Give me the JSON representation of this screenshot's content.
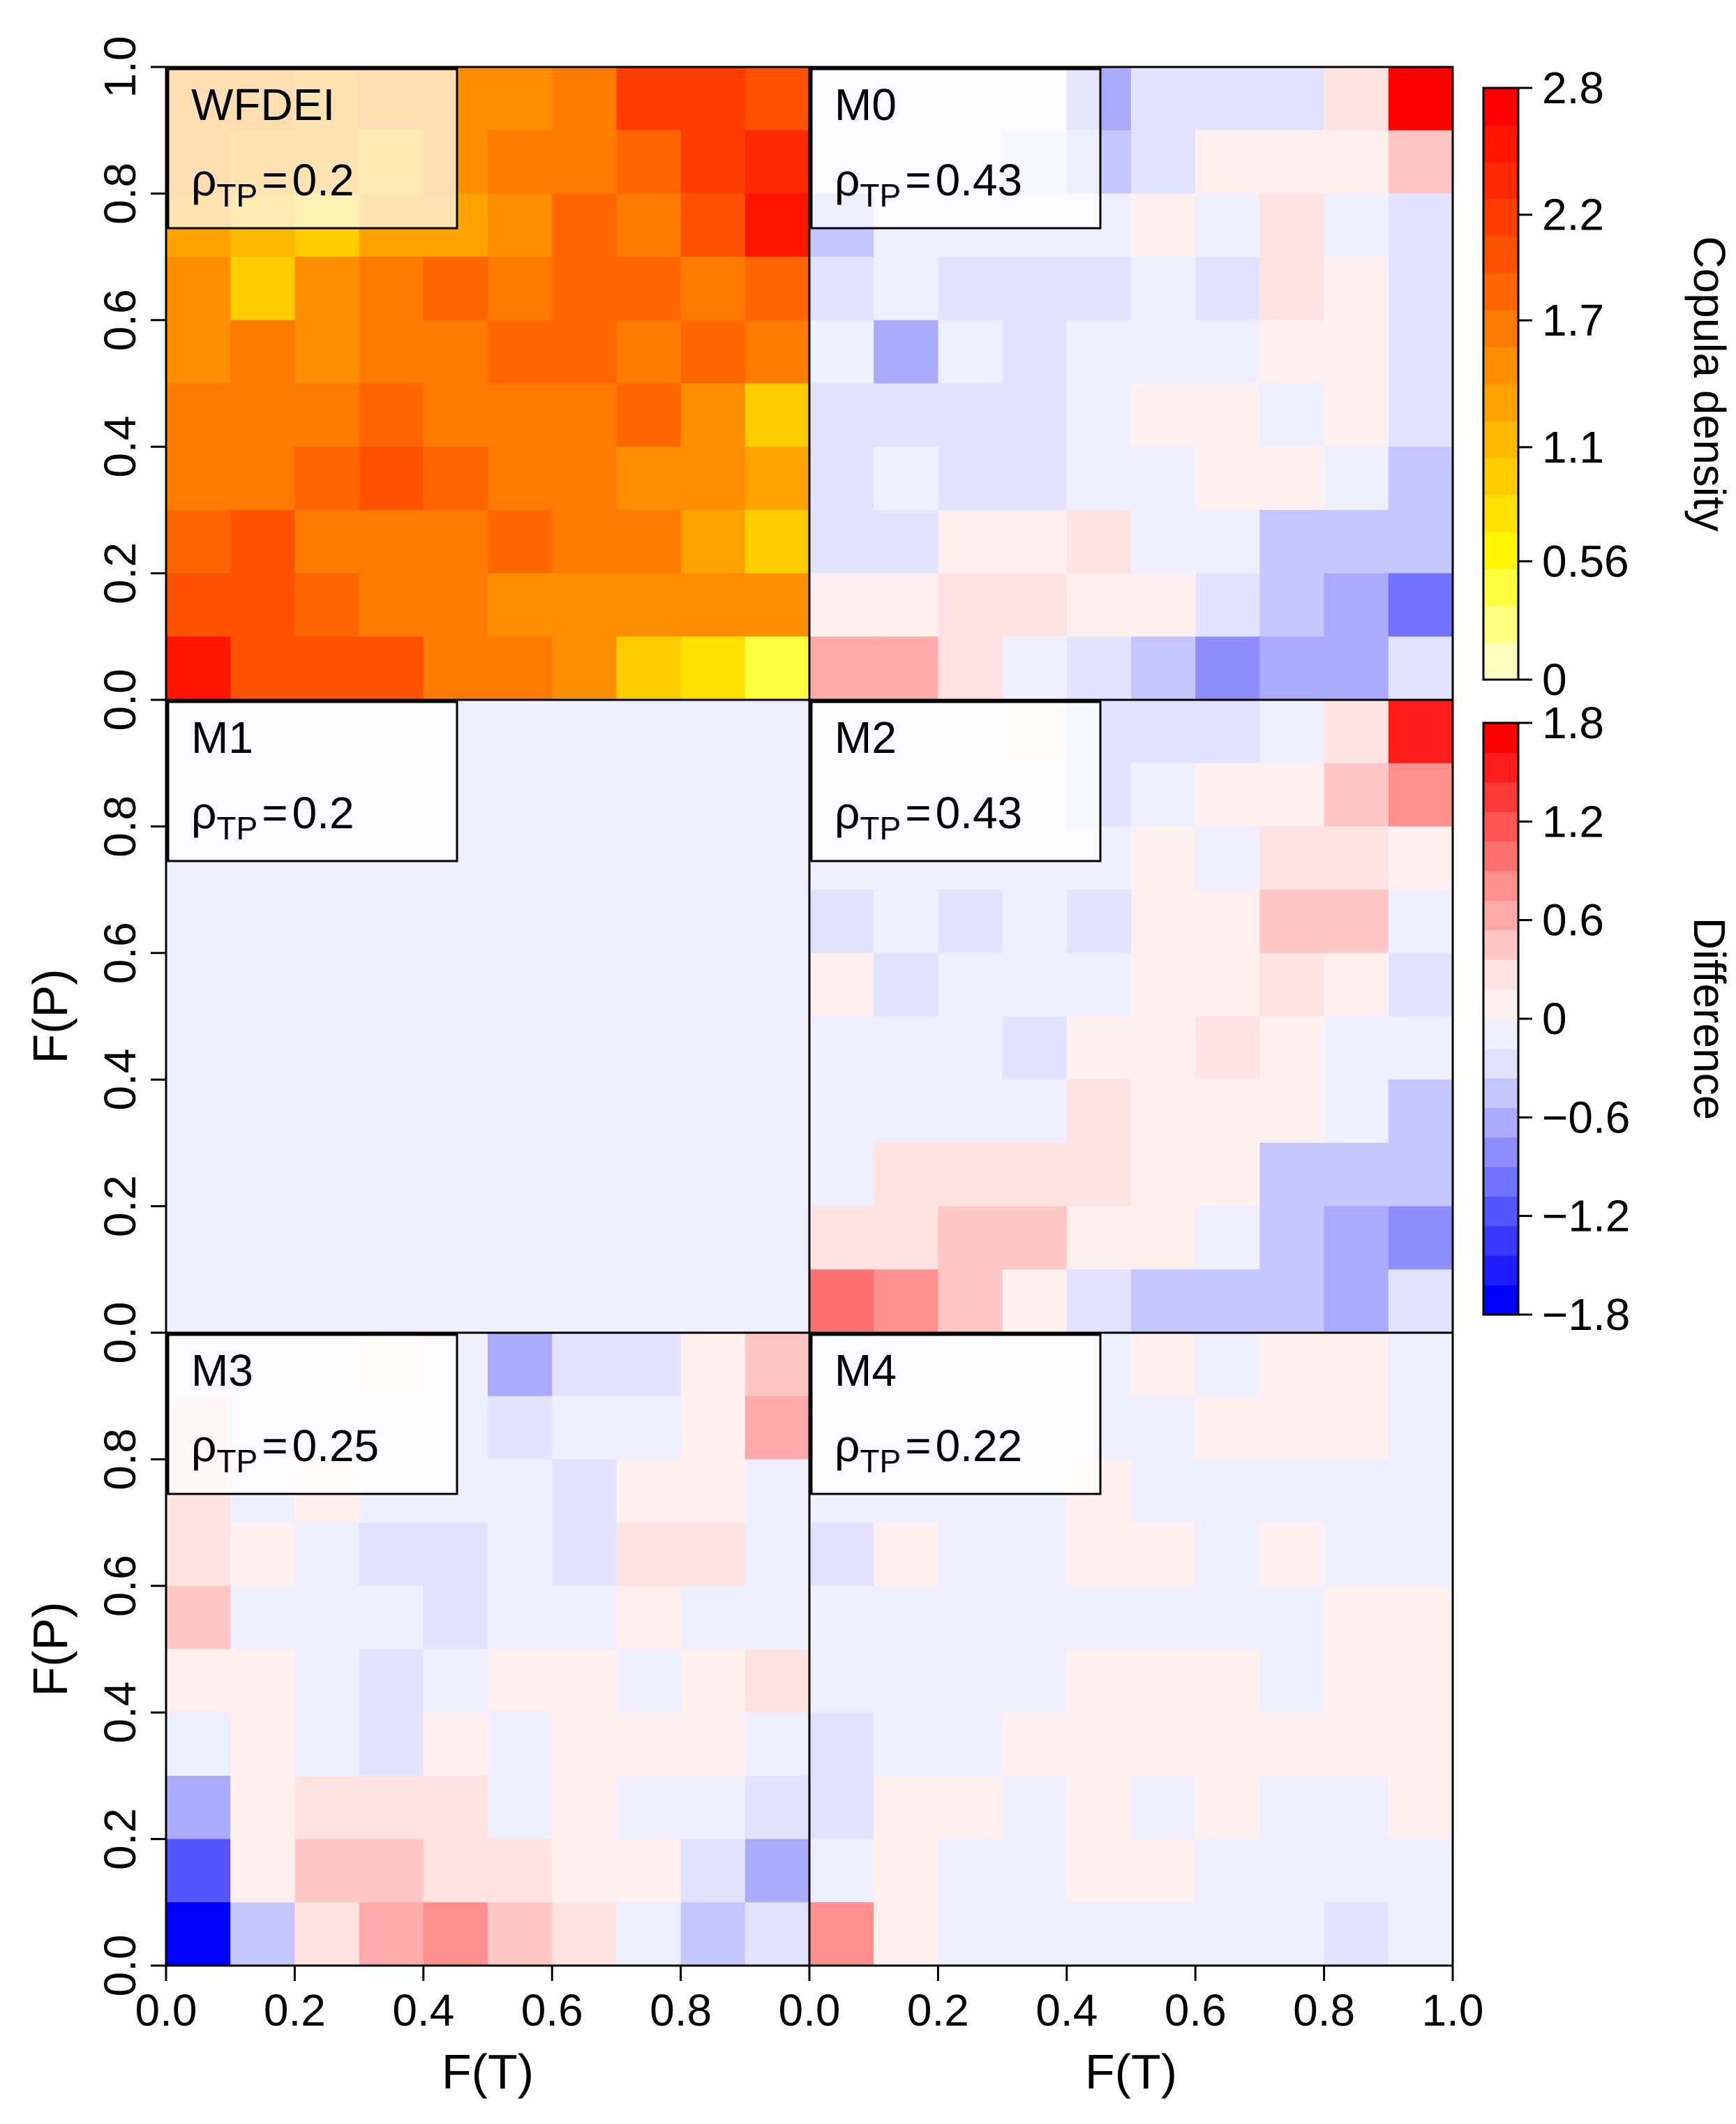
{
  "chart_data": {
    "type": "heatmap",
    "layout": "3 rows x 2 columns of panels",
    "x_label": "F(T)",
    "y_label": "F(P)",
    "x_ticks": [
      "0.0",
      "0.2",
      "0.4",
      "0.6",
      "0.8",
      "1.0"
    ],
    "x_ticks_left_panel": [
      "0.0",
      "0.2",
      "0.4",
      "0.6",
      "0.8"
    ],
    "y_ticks": [
      "0.0",
      "0.2",
      "0.4",
      "0.6",
      "0.8",
      "1.0"
    ],
    "y_ticks_lower_panels": [
      "0.0",
      "0.2",
      "0.4",
      "0.6",
      "0.8"
    ],
    "grid_bins": 10,
    "rho_symbol": "ρ",
    "rho_subscript": "TP",
    "panels": [
      {
        "id": "WFDEI",
        "label": "WFDEI",
        "rho": "0.2",
        "scale": "density",
        "rows_top_to_bottom": [
          [
            1.5,
            1.4,
            1.3,
            1.5,
            1.5,
            1.4,
            1.7,
            2.1,
            2.1,
            2.0
          ],
          [
            1.4,
            1.3,
            1.3,
            1.2,
            1.4,
            1.6,
            1.7,
            1.9,
            2.2,
            2.4
          ],
          [
            1.3,
            1.1,
            1.0,
            1.3,
            1.3,
            1.4,
            1.9,
            1.7,
            2.0,
            2.6
          ],
          [
            1.4,
            1.0,
            1.4,
            1.6,
            1.9,
            1.6,
            1.9,
            1.8,
            1.7,
            1.9
          ],
          [
            1.4,
            1.6,
            1.4,
            1.6,
            1.6,
            1.8,
            1.8,
            1.7,
            1.9,
            1.6
          ],
          [
            1.6,
            1.6,
            1.6,
            1.8,
            1.6,
            1.6,
            1.6,
            1.8,
            1.4,
            1.0
          ],
          [
            1.6,
            1.6,
            1.8,
            2.0,
            1.8,
            1.6,
            1.6,
            1.4,
            1.4,
            1.3
          ],
          [
            1.8,
            2.0,
            1.6,
            1.6,
            1.6,
            1.8,
            1.6,
            1.6,
            1.3,
            1.0
          ],
          [
            2.0,
            2.0,
            1.8,
            1.6,
            1.6,
            1.4,
            1.4,
            1.4,
            1.4,
            1.4
          ],
          [
            2.6,
            2.0,
            2.0,
            2.0,
            1.6,
            1.6,
            1.4,
            0.9,
            0.8,
            0.5
          ]
        ]
      },
      {
        "id": "M0",
        "label": "M0",
        "rho": "0.43",
        "scale": "difference",
        "rows_top_to_bottom": [
          [
            -0.1,
            -0.1,
            -0.1,
            -0.1,
            -0.6,
            -0.2,
            -0.2,
            -0.2,
            0.3,
            1.7
          ],
          [
            -0.1,
            -0.1,
            -0.1,
            -0.2,
            -0.4,
            -0.2,
            0.05,
            0.05,
            0.05,
            0.5
          ],
          [
            -0.5,
            -0.1,
            -0.1,
            -0.1,
            -0.1,
            0.05,
            -0.1,
            0.3,
            -0.1,
            -0.2
          ],
          [
            -0.2,
            -0.1,
            -0.2,
            -0.2,
            -0.2,
            -0.1,
            -0.2,
            0.3,
            0.05,
            -0.2
          ],
          [
            -0.1,
            -0.6,
            -0.1,
            -0.2,
            -0.1,
            -0.1,
            -0.1,
            0.05,
            0.05,
            -0.2
          ],
          [
            -0.2,
            -0.2,
            -0.2,
            -0.2,
            -0.1,
            0.05,
            0.05,
            -0.1,
            0.05,
            -0.2
          ],
          [
            -0.2,
            -0.1,
            -0.2,
            -0.2,
            -0.1,
            -0.1,
            0.05,
            0.05,
            -0.1,
            -0.5
          ],
          [
            -0.2,
            -0.2,
            0.05,
            0.05,
            0.2,
            -0.1,
            -0.1,
            -0.5,
            -0.5,
            -0.5
          ],
          [
            0.05,
            0.05,
            0.2,
            0.2,
            0.05,
            0.05,
            -0.2,
            -0.5,
            -0.7,
            -1.0
          ],
          [
            0.6,
            0.6,
            0.2,
            -0.1,
            -0.2,
            -0.5,
            -0.8,
            -0.7,
            -0.7,
            -0.2
          ]
        ]
      },
      {
        "id": "M1",
        "label": "M1",
        "rho": "0.2",
        "scale": "difference",
        "rows_top_to_bottom": [
          [
            -0.05,
            -0.05,
            -0.05,
            -0.05,
            -0.05,
            -0.05,
            -0.05,
            -0.05,
            -0.05,
            -0.05
          ],
          [
            -0.05,
            -0.05,
            -0.05,
            -0.05,
            -0.05,
            -0.05,
            -0.05,
            -0.05,
            -0.05,
            -0.05
          ],
          [
            -0.05,
            -0.05,
            -0.05,
            -0.05,
            -0.05,
            -0.05,
            -0.05,
            -0.05,
            -0.05,
            -0.05
          ],
          [
            -0.05,
            -0.05,
            -0.05,
            -0.05,
            -0.05,
            -0.05,
            -0.05,
            -0.05,
            -0.05,
            -0.05
          ],
          [
            -0.05,
            -0.05,
            -0.05,
            -0.05,
            -0.05,
            -0.05,
            -0.05,
            -0.05,
            -0.05,
            -0.05
          ],
          [
            -0.05,
            -0.05,
            -0.05,
            -0.05,
            -0.05,
            -0.05,
            -0.05,
            -0.05,
            -0.05,
            -0.05
          ],
          [
            -0.05,
            -0.05,
            -0.05,
            -0.05,
            -0.05,
            -0.05,
            -0.05,
            -0.05,
            -0.05,
            -0.05
          ],
          [
            -0.05,
            -0.05,
            -0.05,
            -0.05,
            -0.05,
            -0.05,
            -0.05,
            -0.05,
            -0.05,
            -0.05
          ],
          [
            -0.05,
            -0.05,
            -0.05,
            -0.05,
            -0.05,
            -0.05,
            -0.05,
            -0.05,
            -0.05,
            -0.05
          ],
          [
            -0.05,
            -0.05,
            -0.05,
            -0.05,
            -0.05,
            -0.05,
            -0.05,
            -0.05,
            -0.05,
            -0.05
          ]
        ]
      },
      {
        "id": "M2",
        "label": "M2",
        "rho": "0.43",
        "scale": "difference",
        "rows_top_to_bottom": [
          [
            -0.1,
            -0.1,
            -0.1,
            0.0,
            -0.2,
            -0.2,
            -0.2,
            -0.1,
            0.3,
            1.6
          ],
          [
            -0.1,
            -0.1,
            -0.1,
            -0.1,
            -0.2,
            -0.1,
            0.05,
            0.05,
            0.5,
            0.8
          ],
          [
            -0.1,
            -0.1,
            -0.1,
            -0.1,
            -0.1,
            0.05,
            -0.1,
            0.3,
            0.3,
            0.05
          ],
          [
            -0.2,
            -0.1,
            -0.2,
            -0.1,
            -0.2,
            0.05,
            0.05,
            0.4,
            0.4,
            -0.1
          ],
          [
            0.05,
            -0.2,
            -0.1,
            -0.1,
            -0.1,
            0.05,
            0.05,
            0.3,
            0.05,
            -0.2
          ],
          [
            -0.1,
            -0.1,
            -0.1,
            -0.2,
            0.05,
            0.05,
            0.2,
            0.05,
            -0.1,
            -0.1
          ],
          [
            -0.1,
            -0.1,
            -0.1,
            -0.1,
            0.2,
            0.05,
            0.05,
            0.05,
            -0.1,
            -0.5
          ],
          [
            -0.1,
            0.2,
            0.2,
            0.2,
            0.2,
            0.05,
            0.05,
            -0.5,
            -0.5,
            -0.5
          ],
          [
            0.2,
            0.2,
            0.4,
            0.4,
            0.05,
            0.05,
            -0.1,
            -0.5,
            -0.7,
            -0.9
          ],
          [
            1.0,
            0.8,
            0.4,
            0.05,
            -0.2,
            -0.4,
            -0.4,
            -0.4,
            -0.7,
            -0.2
          ]
        ]
      },
      {
        "id": "M3",
        "label": "M3",
        "rho": "0.25",
        "scale": "difference",
        "rows_top_to_bottom": [
          [
            -0.1,
            -0.1,
            -0.1,
            0.0,
            -0.1,
            -0.6,
            -0.2,
            -0.2,
            0.05,
            0.4
          ],
          [
            0.2,
            -0.1,
            -0.1,
            -0.1,
            -0.1,
            -0.3,
            -0.1,
            -0.1,
            0.05,
            0.7
          ],
          [
            0.2,
            -0.1,
            0.05,
            -0.1,
            -0.1,
            -0.1,
            -0.2,
            0.05,
            0.05,
            -0.1
          ],
          [
            0.2,
            0.05,
            -0.1,
            -0.2,
            -0.2,
            -0.1,
            -0.2,
            0.2,
            0.2,
            -0.1
          ],
          [
            0.4,
            -0.1,
            -0.1,
            -0.1,
            -0.2,
            -0.1,
            -0.1,
            0.05,
            -0.1,
            -0.1
          ],
          [
            0.05,
            0.05,
            -0.1,
            -0.2,
            -0.1,
            0.05,
            0.05,
            -0.1,
            0.05,
            0.2
          ],
          [
            -0.1,
            0.05,
            -0.1,
            -0.2,
            0.05,
            -0.1,
            0.05,
            0.05,
            0.05,
            -0.1
          ],
          [
            -0.7,
            0.05,
            0.2,
            0.2,
            0.2,
            -0.1,
            0.05,
            -0.1,
            -0.1,
            -0.2
          ],
          [
            -1.1,
            0.05,
            0.4,
            0.4,
            0.2,
            0.2,
            0.05,
            0.05,
            -0.2,
            -0.7
          ],
          [
            -1.8,
            -0.5,
            0.2,
            0.6,
            0.8,
            0.4,
            0.2,
            -0.1,
            -0.5,
            -0.2
          ]
        ]
      },
      {
        "id": "M4",
        "label": "M4",
        "rho": "0.22",
        "scale": "difference",
        "rows_top_to_bottom": [
          [
            -0.1,
            -0.1,
            -0.1,
            -0.1,
            -0.1,
            0.05,
            -0.1,
            0.05,
            0.05,
            -0.1
          ],
          [
            -0.1,
            -0.1,
            -0.1,
            -0.1,
            -0.1,
            -0.1,
            0.05,
            0.05,
            0.05,
            -0.1
          ],
          [
            -0.1,
            -0.1,
            -0.1,
            -0.1,
            0.05,
            -0.1,
            -0.1,
            -0.1,
            -0.1,
            -0.1
          ],
          [
            -0.2,
            0.05,
            -0.1,
            -0.1,
            0.05,
            0.05,
            -0.1,
            0.05,
            -0.1,
            -0.1
          ],
          [
            -0.1,
            -0.1,
            -0.1,
            -0.1,
            -0.1,
            -0.1,
            -0.1,
            -0.1,
            0.05,
            0.05
          ],
          [
            -0.1,
            -0.1,
            -0.1,
            -0.1,
            0.05,
            0.05,
            0.05,
            -0.1,
            0.05,
            0.05
          ],
          [
            -0.2,
            -0.1,
            -0.1,
            0.05,
            0.05,
            0.05,
            0.05,
            0.05,
            0.05,
            0.05
          ],
          [
            -0.2,
            0.05,
            0.05,
            -0.1,
            0.05,
            -0.1,
            0.05,
            -0.1,
            -0.1,
            0.05
          ],
          [
            -0.1,
            0.05,
            -0.1,
            -0.1,
            0.05,
            0.05,
            -0.1,
            -0.1,
            -0.1,
            -0.1
          ],
          [
            0.8,
            0.05,
            -0.1,
            -0.1,
            -0.1,
            -0.1,
            -0.1,
            -0.1,
            -0.2,
            -0.1
          ]
        ]
      }
    ],
    "colorbars": [
      {
        "id": "density",
        "title": "Copula density",
        "range": [
          0,
          2.8
        ],
        "tick_values": [
          2.8,
          2.2,
          1.7,
          1.1,
          0.56,
          0
        ],
        "tick_labels": [
          "2.8",
          "2.2",
          "1.7",
          "1.1",
          "0.56",
          "0"
        ],
        "colors_low_to_high": [
          "#FFFFBF",
          "#FFFF80",
          "#FFFF40",
          "#FFF500",
          "#FFE000",
          "#FFCC00",
          "#FFB800",
          "#FFA300",
          "#FF8F00",
          "#FF7A00",
          "#FF6600",
          "#FF5200",
          "#FF3D00",
          "#FF2900",
          "#FF1400",
          "#FF0000"
        ]
      },
      {
        "id": "difference",
        "title": "Difference",
        "range": [
          -1.8,
          1.8
        ],
        "tick_values": [
          1.8,
          1.2,
          0.6,
          0,
          -0.6,
          -1.2,
          -1.8
        ],
        "tick_labels": [
          "1.8",
          "1.2",
          "0.6",
          "0",
          "−0.6",
          "−1.2",
          "−1.8"
        ],
        "colors_low_to_high": [
          "#0000FF",
          "#1C1CFF",
          "#3939FF",
          "#5555FF",
          "#7171FF",
          "#8E8EFF",
          "#AAAAFF",
          "#C6C6FF",
          "#E3E3FF",
          "#EFEFFF",
          "#FFF0F0",
          "#FFE3E3",
          "#FFC6C6",
          "#FFAAAA",
          "#FF8E8E",
          "#FF7171",
          "#FF5555",
          "#FF3939",
          "#FF1C1C",
          "#FF0000"
        ]
      }
    ]
  }
}
